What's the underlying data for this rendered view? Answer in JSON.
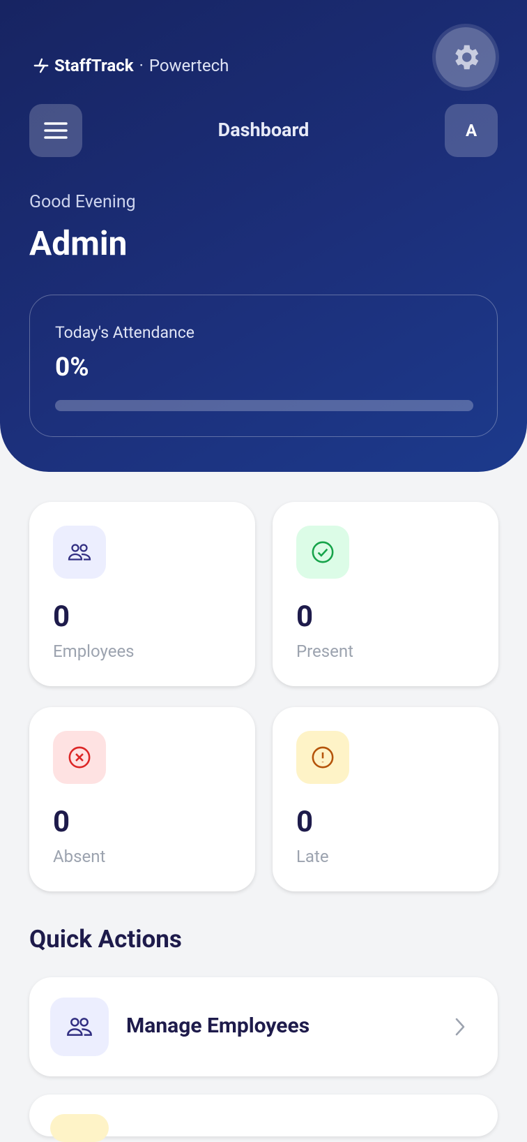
{
  "brand": {
    "name": "StaffTrack",
    "separator": "·",
    "org": "Powertech"
  },
  "header": {
    "title": "Dashboard",
    "avatar": "A"
  },
  "greeting": {
    "salutation": "Good Evening",
    "user": "Admin"
  },
  "attendance": {
    "label": "Today's Attendance",
    "value": 0,
    "value_label": "0%"
  },
  "stats": [
    {
      "value": 0,
      "label": "Employees"
    },
    {
      "value": 0,
      "label": "Present"
    },
    {
      "value": 0,
      "label": "Absent"
    },
    {
      "value": 0,
      "label": "Late"
    }
  ],
  "quick_actions": {
    "title": "Quick Actions",
    "items": [
      {
        "label": "Manage Employees"
      }
    ]
  }
}
